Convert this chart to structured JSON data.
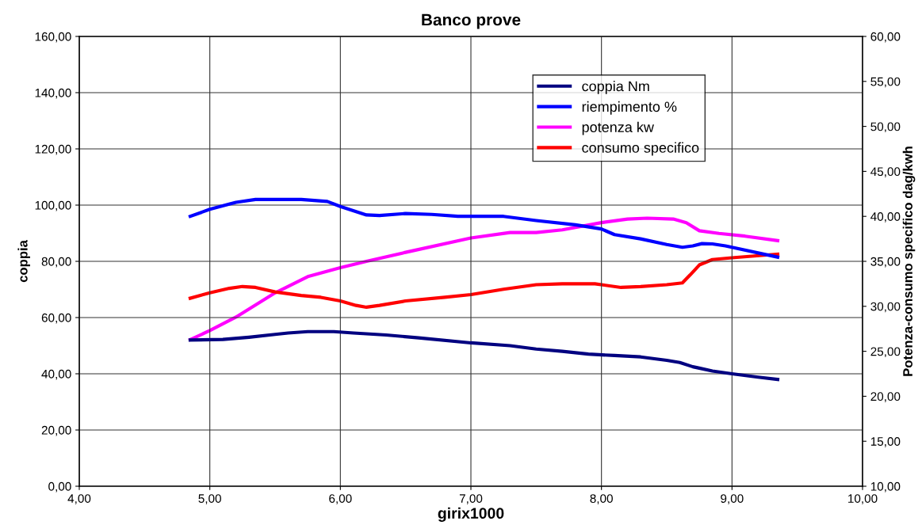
{
  "chart_data": {
    "type": "line",
    "title": "Banco prove",
    "xlabel": "girix1000",
    "ylabel": "coppia",
    "y2label": "Potenza-consumo specifico dag/kwh",
    "xlim": [
      4,
      10
    ],
    "xticks": [
      {
        "value": 4,
        "label": "4,00"
      },
      {
        "value": 5,
        "label": "5,00"
      },
      {
        "value": 6,
        "label": "6,00"
      },
      {
        "value": 7,
        "label": "7,00"
      },
      {
        "value": 8,
        "label": "8,00"
      },
      {
        "value": 9,
        "label": "9,00"
      },
      {
        "value": 10,
        "label": "10,00"
      }
    ],
    "ylim": [
      0,
      160
    ],
    "yticks": [
      {
        "value": 0,
        "label": "0,00"
      },
      {
        "value": 20,
        "label": "20,00"
      },
      {
        "value": 40,
        "label": "40,00"
      },
      {
        "value": 60,
        "label": "60,00"
      },
      {
        "value": 80,
        "label": "80,00"
      },
      {
        "value": 100,
        "label": "100,00"
      },
      {
        "value": 120,
        "label": "120,00"
      },
      {
        "value": 140,
        "label": "140,00"
      },
      {
        "value": 160,
        "label": "160,00"
      }
    ],
    "y2lim": [
      10,
      60
    ],
    "y2ticks": [
      {
        "value": 10,
        "label": "10,00"
      },
      {
        "value": 15,
        "label": "15,00"
      },
      {
        "value": 20,
        "label": "20,00"
      },
      {
        "value": 25,
        "label": "25,00"
      },
      {
        "value": 30,
        "label": "30,00"
      },
      {
        "value": 35,
        "label": "35,00"
      },
      {
        "value": 40,
        "label": "40,00"
      },
      {
        "value": 45,
        "label": "45,00"
      },
      {
        "value": 50,
        "label": "50,00"
      },
      {
        "value": 55,
        "label": "55,00"
      },
      {
        "value": 60,
        "label": "60,00"
      }
    ],
    "grid": true,
    "legend": "top right",
    "marker": "none",
    "line_style": "solid",
    "series": [
      {
        "name": "coppia Nm",
        "color": "#000080",
        "x": [
          4.85,
          5.1,
          5.3,
          5.5,
          5.6,
          5.75,
          5.95,
          6.1,
          6.35,
          6.6,
          7.0,
          7.3,
          7.5,
          7.7,
          7.9,
          8.1,
          8.3,
          8.5,
          8.6,
          8.7,
          8.75,
          8.85,
          9.0,
          9.2,
          9.35
        ],
        "values": [
          52,
          52.2,
          53,
          54,
          54.5,
          55,
          55,
          54.5,
          53.8,
          52.8,
          51,
          50,
          48.8,
          48,
          47,
          46.5,
          46,
          44.8,
          44,
          42.5,
          42,
          41,
          40,
          38.8,
          38
        ]
      },
      {
        "name": "riempimento %",
        "color": "#0000ff",
        "x": [
          4.85,
          5.0,
          5.2,
          5.35,
          5.7,
          5.9,
          6.0,
          6.2,
          6.3,
          6.5,
          6.7,
          6.9,
          7.25,
          7.5,
          7.8,
          8.0,
          8.1,
          8.3,
          8.5,
          8.62,
          8.7,
          8.77,
          8.85,
          8.95,
          9.35
        ],
        "values": [
          96,
          98.5,
          101,
          102,
          102,
          101.3,
          99.5,
          96.5,
          96.3,
          97,
          96.7,
          96,
          96,
          94.5,
          93,
          91.5,
          89.5,
          88,
          86,
          85,
          85.5,
          86.3,
          86.2,
          85.5,
          81.5
        ]
      },
      {
        "name": "potenza kw",
        "color": "#ff00ff",
        "axis": "y2",
        "x": [
          4.85,
          5.0,
          5.2,
          5.5,
          5.75,
          6.0,
          6.2,
          6.5,
          7.0,
          7.3,
          7.5,
          7.7,
          8.0,
          8.2,
          8.35,
          8.55,
          8.65,
          8.75,
          8.9,
          9.1,
          9.35
        ],
        "values": [
          26.3,
          27.3,
          28.8,
          31.5,
          33.3,
          34.3,
          35,
          36,
          37.6,
          38.2,
          38.2,
          38.5,
          39.3,
          39.7,
          39.8,
          39.7,
          39.3,
          38.4,
          38.1,
          37.8,
          37.3
        ]
      },
      {
        "name": "consumo specifico",
        "color": "#ff0000",
        "axis": "y2",
        "x": [
          4.85,
          5.0,
          5.15,
          5.25,
          5.35,
          5.5,
          5.7,
          5.85,
          6.0,
          6.12,
          6.2,
          6.3,
          6.5,
          6.8,
          7.0,
          7.25,
          7.5,
          7.7,
          7.95,
          8.15,
          8.3,
          8.5,
          8.62,
          8.68,
          8.75,
          8.85,
          9.0,
          9.35
        ],
        "values": [
          30.9,
          31.5,
          32,
          32.2,
          32.1,
          31.6,
          31.2,
          31,
          30.6,
          30.1,
          29.9,
          30.1,
          30.6,
          31,
          31.3,
          31.9,
          32.4,
          32.5,
          32.5,
          32.1,
          32.2,
          32.4,
          32.6,
          33.5,
          34.6,
          35.2,
          35.4,
          35.8
        ]
      }
    ]
  }
}
